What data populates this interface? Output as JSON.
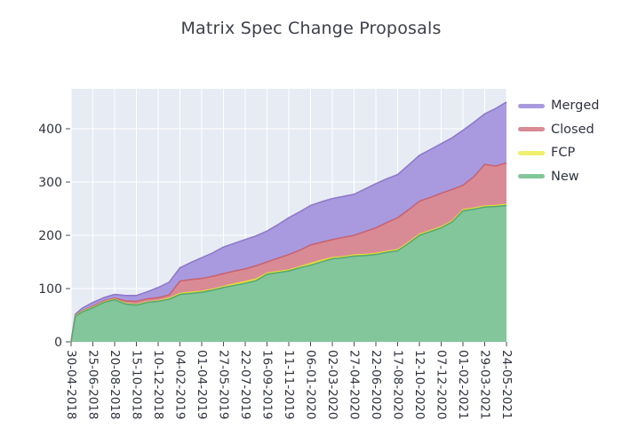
{
  "title": "Matrix Spec Change Proposals",
  "legend": {
    "items": [
      {
        "label": "Merged",
        "color": "#a99adf"
      },
      {
        "label": "Closed",
        "color": "#d98b95"
      },
      {
        "label": "FCP",
        "color": "#f1ef6e"
      },
      {
        "label": "New",
        "color": "#83c69b"
      }
    ]
  },
  "chart_data": {
    "type": "area",
    "stacked": true,
    "title": "Matrix Spec Change Proposals",
    "xlabel": "",
    "ylabel": "",
    "plot_bg": "#e7ebf4",
    "grid_color": "#ffffff",
    "tick_color": "#444c56",
    "label_color": "#30343f",
    "y_ticks": [
      0,
      100,
      200,
      300,
      400
    ],
    "ylim": [
      0,
      475
    ],
    "x_tick_labels": [
      "30-04-2018",
      "25-06-2018",
      "20-08-2018",
      "15-10-2018",
      "10-12-2018",
      "04-02-2019",
      "01-04-2019",
      "27-05-2019",
      "22-07-2019",
      "16-09-2019",
      "11-11-2019",
      "06-01-2020",
      "02-03-2020",
      "27-04-2020",
      "22-06-2020",
      "17-08-2020",
      "12-10-2020",
      "07-12-2020",
      "01-02-2021",
      "29-03-2021",
      "24-05-2021"
    ],
    "x_total_days": 1120,
    "x_days": [
      0,
      11,
      28,
      56,
      84,
      112,
      140,
      168,
      196,
      224,
      252,
      280,
      308,
      336,
      364,
      392,
      420,
      448,
      476,
      504,
      532,
      560,
      588,
      616,
      644,
      672,
      700,
      728,
      756,
      784,
      812,
      840,
      868,
      896,
      924,
      952,
      980,
      1008,
      1036,
      1064,
      1092,
      1120
    ],
    "series": [
      {
        "name": "New",
        "fill": "#83c69b",
        "line": "#57a877",
        "values": [
          0,
          48,
          56,
          64,
          74,
          79,
          71,
          69,
          74,
          76,
          80,
          89,
          91,
          93,
          97,
          102,
          106,
          110,
          115,
          127,
          130,
          133,
          139,
          144,
          150,
          156,
          158,
          161,
          162,
          164,
          168,
          171,
          185,
          200,
          207,
          214,
          225,
          246,
          249,
          253,
          254,
          256
        ]
      },
      {
        "name": "FCP",
        "fill": "#f1ef6e",
        "line": "#e0de35",
        "values": [
          0,
          1,
          1,
          1,
          1,
          1,
          1,
          1,
          1,
          1,
          2,
          2,
          2,
          2,
          2,
          2,
          3,
          3,
          3,
          2,
          2,
          2,
          2,
          3,
          3,
          2,
          2,
          2,
          2,
          2,
          2,
          2,
          2,
          2,
          2,
          2,
          2,
          2,
          2,
          2,
          2,
          2
        ]
      },
      {
        "name": "Closed",
        "fill": "#d98b95",
        "line": "#c9636f",
        "values": [
          0,
          1,
          1,
          2,
          2,
          2,
          5,
          6,
          6,
          6,
          6,
          23,
          24,
          24,
          24,
          24,
          24,
          24,
          25,
          21,
          25,
          29,
          31,
          35,
          34,
          34,
          36,
          37,
          43,
          48,
          54,
          60,
          61,
          62,
          62,
          63,
          59,
          46,
          59,
          78,
          74,
          78
        ]
      },
      {
        "name": "Merged",
        "fill": "#a99adf",
        "line": "#8f78ce",
        "values": [
          0,
          2,
          5,
          7,
          6,
          7,
          10,
          11,
          13,
          19,
          24,
          25,
          32,
          39,
          44,
          50,
          52,
          55,
          56,
          58,
          63,
          69,
          72,
          74,
          76,
          77,
          77,
          77,
          80,
          83,
          82,
          81,
          84,
          86,
          90,
          93,
          97,
          103,
          102,
          95,
          108,
          114
        ]
      }
    ],
    "legend_order": [
      "Merged",
      "Closed",
      "FCP",
      "New"
    ]
  }
}
